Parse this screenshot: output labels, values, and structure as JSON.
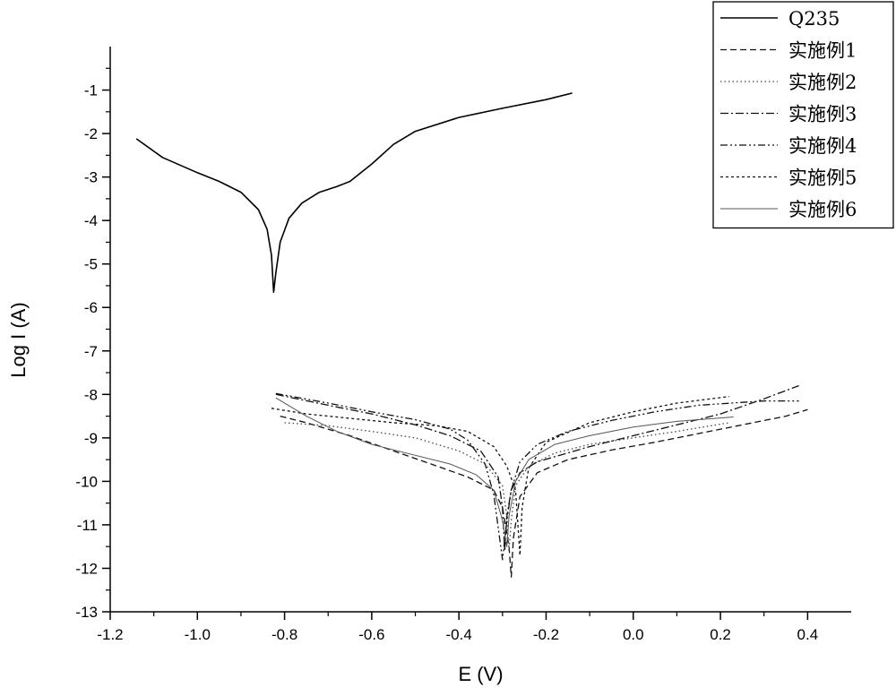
{
  "chart_data": {
    "type": "line",
    "xlabel": "E (V)",
    "ylabel": "Log I (A)",
    "xlim": [
      -1.2,
      0.5
    ],
    "ylim": [
      -13,
      0
    ],
    "x_ticks": [
      -1.2,
      -1.0,
      -0.8,
      -0.6,
      -0.4,
      -0.2,
      0.0,
      0.2,
      0.4
    ],
    "x_tick_labels": [
      "-1.2",
      "-1.0",
      "-0.8",
      "-0.6",
      "-0.4",
      "-0.2",
      "0.0",
      "0.2",
      "0.4"
    ],
    "y_ticks": [
      -1,
      -2,
      -3,
      -4,
      -5,
      -6,
      -7,
      -8,
      -9,
      -10,
      -11,
      -12,
      -13
    ],
    "y_tick_labels": [
      "-1",
      "-2",
      "-3",
      "-4",
      "-5",
      "-6",
      "-7",
      "-8",
      "-9",
      "-10",
      "-11",
      "-12",
      "-13"
    ],
    "grid": false,
    "legend_position": "top-right",
    "series": [
      {
        "name": "Q235",
        "dash": "solid",
        "color": "#000000",
        "points": [
          [
            -1.14,
            -2.12
          ],
          [
            -1.08,
            -2.55
          ],
          [
            -1.0,
            -2.9
          ],
          [
            -0.95,
            -3.1
          ],
          [
            -0.9,
            -3.35
          ],
          [
            -0.86,
            -3.75
          ],
          [
            -0.84,
            -4.2
          ],
          [
            -0.83,
            -4.8
          ],
          [
            -0.825,
            -5.65
          ],
          [
            -0.82,
            -5.2
          ],
          [
            -0.81,
            -4.5
          ],
          [
            -0.79,
            -3.95
          ],
          [
            -0.76,
            -3.6
          ],
          [
            -0.72,
            -3.35
          ],
          [
            -0.68,
            -3.22
          ],
          [
            -0.65,
            -3.1
          ],
          [
            -0.6,
            -2.7
          ],
          [
            -0.55,
            -2.25
          ],
          [
            -0.5,
            -1.95
          ],
          [
            -0.4,
            -1.63
          ],
          [
            -0.3,
            -1.42
          ],
          [
            -0.2,
            -1.22
          ],
          [
            -0.14,
            -1.07
          ]
        ]
      },
      {
        "name": "实施例1",
        "dash": "dashed",
        "color": "#111111",
        "points": [
          [
            -0.81,
            -8.5
          ],
          [
            -0.75,
            -8.65
          ],
          [
            -0.65,
            -8.95
          ],
          [
            -0.55,
            -9.3
          ],
          [
            -0.45,
            -9.65
          ],
          [
            -0.38,
            -9.9
          ],
          [
            -0.32,
            -10.2
          ],
          [
            -0.3,
            -10.6
          ],
          [
            -0.285,
            -11.5
          ],
          [
            -0.28,
            -12.2
          ],
          [
            -0.275,
            -11.3
          ],
          [
            -0.26,
            -10.35
          ],
          [
            -0.22,
            -9.8
          ],
          [
            -0.15,
            -9.5
          ],
          [
            -0.05,
            -9.28
          ],
          [
            0.05,
            -9.1
          ],
          [
            0.15,
            -8.9
          ],
          [
            0.25,
            -8.7
          ],
          [
            0.35,
            -8.5
          ],
          [
            0.4,
            -8.35
          ]
        ]
      },
      {
        "name": "实施例2",
        "dash": "dotted",
        "color": "#444444",
        "points": [
          [
            -0.8,
            -8.65
          ],
          [
            -0.7,
            -8.72
          ],
          [
            -0.6,
            -8.85
          ],
          [
            -0.5,
            -9.0
          ],
          [
            -0.4,
            -9.3
          ],
          [
            -0.34,
            -9.6
          ],
          [
            -0.3,
            -10.1
          ],
          [
            -0.29,
            -10.8
          ],
          [
            -0.285,
            -11.6
          ],
          [
            -0.28,
            -10.9
          ],
          [
            -0.27,
            -10.1
          ],
          [
            -0.24,
            -9.65
          ],
          [
            -0.18,
            -9.35
          ],
          [
            -0.1,
            -9.15
          ],
          [
            0.0,
            -9.0
          ],
          [
            0.1,
            -8.85
          ],
          [
            0.22,
            -8.65
          ]
        ]
      },
      {
        "name": "实施例3",
        "dash": "dashdot",
        "color": "#111111",
        "points": [
          [
            -0.82,
            -8.0
          ],
          [
            -0.7,
            -8.25
          ],
          [
            -0.6,
            -8.45
          ],
          [
            -0.5,
            -8.7
          ],
          [
            -0.42,
            -8.95
          ],
          [
            -0.35,
            -9.3
          ],
          [
            -0.31,
            -9.9
          ],
          [
            -0.3,
            -10.6
          ],
          [
            -0.295,
            -11.6
          ],
          [
            -0.29,
            -10.8
          ],
          [
            -0.28,
            -10.2
          ],
          [
            -0.26,
            -9.8
          ],
          [
            -0.22,
            -9.55
          ],
          [
            -0.1,
            -9.2
          ],
          [
            0.0,
            -8.95
          ],
          [
            0.1,
            -8.7
          ],
          [
            0.2,
            -8.45
          ],
          [
            0.3,
            -8.1
          ],
          [
            0.38,
            -7.8
          ]
        ]
      },
      {
        "name": "实施例4",
        "dash": "dashdotdot",
        "color": "#111111",
        "points": [
          [
            -0.82,
            -7.98
          ],
          [
            -0.7,
            -8.2
          ],
          [
            -0.6,
            -8.4
          ],
          [
            -0.5,
            -8.58
          ],
          [
            -0.42,
            -8.8
          ],
          [
            -0.38,
            -9.05
          ],
          [
            -0.34,
            -9.6
          ],
          [
            -0.32,
            -10.3
          ],
          [
            -0.3,
            -11.8
          ],
          [
            -0.29,
            -10.9
          ],
          [
            -0.28,
            -10.2
          ],
          [
            -0.26,
            -9.55
          ],
          [
            -0.22,
            -9.15
          ],
          [
            -0.15,
            -8.85
          ],
          [
            -0.05,
            -8.6
          ],
          [
            0.05,
            -8.4
          ],
          [
            0.15,
            -8.25
          ],
          [
            0.3,
            -8.15
          ],
          [
            0.38,
            -8.15
          ]
        ]
      },
      {
        "name": "实施例5",
        "dash": "shortdash",
        "color": "#111111",
        "points": [
          [
            -0.83,
            -8.32
          ],
          [
            -0.75,
            -8.45
          ],
          [
            -0.65,
            -8.55
          ],
          [
            -0.55,
            -8.65
          ],
          [
            -0.45,
            -8.72
          ],
          [
            -0.38,
            -8.85
          ],
          [
            -0.32,
            -9.2
          ],
          [
            -0.29,
            -9.65
          ],
          [
            -0.27,
            -10.2
          ],
          [
            -0.26,
            -11.7
          ],
          [
            -0.255,
            -10.6
          ],
          [
            -0.24,
            -9.7
          ],
          [
            -0.2,
            -9.1
          ],
          [
            -0.1,
            -8.65
          ],
          [
            0.0,
            -8.4
          ],
          [
            0.1,
            -8.2
          ],
          [
            0.22,
            -8.05
          ]
        ]
      },
      {
        "name": "实施例6",
        "dash": "solid-thin",
        "color": "#555555",
        "points": [
          [
            -0.82,
            -8.08
          ],
          [
            -0.75,
            -8.5
          ],
          [
            -0.68,
            -8.85
          ],
          [
            -0.6,
            -9.15
          ],
          [
            -0.5,
            -9.4
          ],
          [
            -0.42,
            -9.6
          ],
          [
            -0.36,
            -9.85
          ],
          [
            -0.32,
            -10.2
          ],
          [
            -0.3,
            -10.9
          ],
          [
            -0.29,
            -11.5
          ],
          [
            -0.285,
            -10.8
          ],
          [
            -0.27,
            -10.0
          ],
          [
            -0.24,
            -9.5
          ],
          [
            -0.18,
            -9.15
          ],
          [
            -0.1,
            -8.95
          ],
          [
            0.0,
            -8.75
          ],
          [
            0.1,
            -8.62
          ],
          [
            0.23,
            -8.52
          ]
        ]
      }
    ]
  }
}
